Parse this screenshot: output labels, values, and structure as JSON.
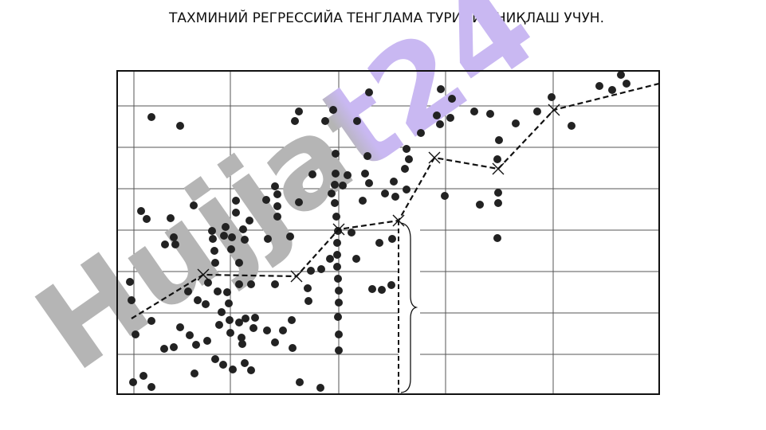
{
  "chart_data": {
    "type": "scatter",
    "title": "ТАХМИНИЙ РЕГРЕССИЙА ТЕНГЛАМА ТУРИНИ АНИҚЛАШ УЧУН.",
    "watermark": "Hujjat24",
    "xlim": [
      0,
      680
    ],
    "ylim": [
      0,
      406
    ],
    "xticks": [
      21,
      142,
      278,
      412,
      547
    ],
    "yticks": [
      50,
      102,
      154,
      206,
      258,
      310,
      362
    ],
    "grid": true,
    "color": "#222222",
    "x": [
      43,
      79,
      16,
      18,
      23,
      20,
      33,
      43,
      30,
      37,
      43,
      59,
      67,
      71,
      60,
      73,
      96,
      79,
      71,
      91,
      99,
      113,
      97,
      89,
      101,
      111,
      114,
      122,
      123,
      119,
      120,
      134,
      136,
      144,
      143,
      153,
      160,
      158,
      166,
      149,
      149,
      187,
      198,
      201,
      201,
      201,
      189,
      126,
      138,
      140,
      131,
      128,
      141,
      142,
      153,
      161,
      173,
      171,
      156,
      157,
      123,
      133,
      145,
      160,
      168,
      188,
      198,
      208,
      219,
      220,
      229,
      255,
      153,
      168,
      198,
      217,
      228,
      245,
      256,
      243,
      239,
      240,
      223,
      228,
      261,
      271,
      301,
      316,
      274,
      274,
      273,
      269,
      289,
      283,
      273,
      275,
      277,
      276,
      276,
      276,
      267,
      277,
      278,
      278,
      277,
      278,
      278,
      294,
      300,
      308,
      316,
      311,
      314,
      329,
      320,
      332,
      344,
      345,
      336,
      347,
      349,
      363,
      361,
      366,
      363,
      381,
      406,
      420,
      401,
      405,
      418,
      411,
      448,
      468,
      479,
      477,
      478,
      478,
      455,
      477,
      500,
      527,
      545,
      570,
      605,
      621,
      632,
      639
    ],
    "y": [
      348,
      337,
      141,
      118,
      75,
      15,
      23,
      9,
      230,
      220,
      92,
      57,
      221,
      197,
      188,
      188,
      237,
      84,
      59,
      74,
      62,
      67,
      26,
      129,
      118,
      113,
      140,
      180,
      165,
      205,
      195,
      199,
      210,
      197,
      182,
      165,
      194,
      207,
      218,
      243,
      228,
      244,
      261,
      251,
      236,
      223,
      195,
      129,
      128,
      114,
      103,
      87,
      93,
      77,
      90,
      95,
      96,
      83,
      71,
      63,
      44,
      37,
      31,
      39,
      30,
      80,
      65,
      80,
      93,
      58,
      15,
      8,
      138,
      138,
      138,
      198,
      241,
      276,
      157,
      155,
      133,
      117,
      343,
      355,
      343,
      357,
      343,
      379,
      302,
      277,
      263,
      252,
      275,
      262,
      240,
      223,
      205,
      190,
      175,
      160,
      170,
      145,
      130,
      115,
      97,
      75,
      55,
      203,
      170,
      243,
      265,
      277,
      299,
      190,
      132,
      131,
      137,
      195,
      252,
      267,
      248,
      257,
      283,
      295,
      308,
      328,
      383,
      371,
      350,
      339,
      347,
      249,
      355,
      352,
      319,
      295,
      253,
      240,
      238,
      196,
      340,
      355,
      373,
      337,
      387,
      382,
      401,
      390
    ],
    "trend": {
      "x": [
        18,
        108,
        225,
        278,
        353,
        398,
        478,
        548,
        680
      ],
      "y": [
        95,
        150,
        148,
        207,
        218,
        297,
        283,
        357,
        390
      ]
    }
  }
}
